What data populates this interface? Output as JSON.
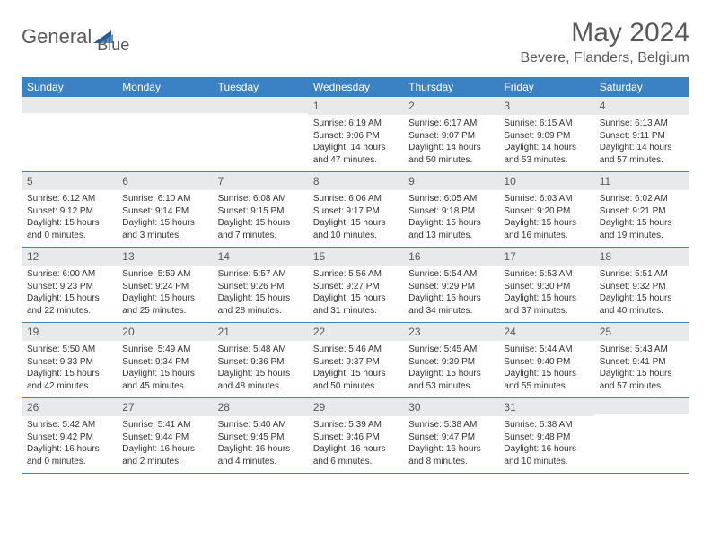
{
  "logo": {
    "text1": "General",
    "text2": "Blue"
  },
  "title": "May 2024",
  "location": "Bevere, Flanders, Belgium",
  "colors": {
    "header_bg": "#3b82c4",
    "header_text": "#ffffff",
    "daynum_bg": "#e8e9ea",
    "text": "#58595b",
    "body_text": "#333333",
    "border": "#3b82c4",
    "logo_accent": "#1e5fa0"
  },
  "fonts": {
    "title_size": 30,
    "location_size": 16,
    "header_size": 12,
    "body_size": 10
  },
  "dayNames": [
    "Sunday",
    "Monday",
    "Tuesday",
    "Wednesday",
    "Thursday",
    "Friday",
    "Saturday"
  ],
  "weeks": [
    [
      null,
      null,
      null,
      {
        "d": "1",
        "sr": "6:19 AM",
        "ss": "9:06 PM",
        "dl": "14 hours and 47 minutes."
      },
      {
        "d": "2",
        "sr": "6:17 AM",
        "ss": "9:07 PM",
        "dl": "14 hours and 50 minutes."
      },
      {
        "d": "3",
        "sr": "6:15 AM",
        "ss": "9:09 PM",
        "dl": "14 hours and 53 minutes."
      },
      {
        "d": "4",
        "sr": "6:13 AM",
        "ss": "9:11 PM",
        "dl": "14 hours and 57 minutes."
      }
    ],
    [
      {
        "d": "5",
        "sr": "6:12 AM",
        "ss": "9:12 PM",
        "dl": "15 hours and 0 minutes."
      },
      {
        "d": "6",
        "sr": "6:10 AM",
        "ss": "9:14 PM",
        "dl": "15 hours and 3 minutes."
      },
      {
        "d": "7",
        "sr": "6:08 AM",
        "ss": "9:15 PM",
        "dl": "15 hours and 7 minutes."
      },
      {
        "d": "8",
        "sr": "6:06 AM",
        "ss": "9:17 PM",
        "dl": "15 hours and 10 minutes."
      },
      {
        "d": "9",
        "sr": "6:05 AM",
        "ss": "9:18 PM",
        "dl": "15 hours and 13 minutes."
      },
      {
        "d": "10",
        "sr": "6:03 AM",
        "ss": "9:20 PM",
        "dl": "15 hours and 16 minutes."
      },
      {
        "d": "11",
        "sr": "6:02 AM",
        "ss": "9:21 PM",
        "dl": "15 hours and 19 minutes."
      }
    ],
    [
      {
        "d": "12",
        "sr": "6:00 AM",
        "ss": "9:23 PM",
        "dl": "15 hours and 22 minutes."
      },
      {
        "d": "13",
        "sr": "5:59 AM",
        "ss": "9:24 PM",
        "dl": "15 hours and 25 minutes."
      },
      {
        "d": "14",
        "sr": "5:57 AM",
        "ss": "9:26 PM",
        "dl": "15 hours and 28 minutes."
      },
      {
        "d": "15",
        "sr": "5:56 AM",
        "ss": "9:27 PM",
        "dl": "15 hours and 31 minutes."
      },
      {
        "d": "16",
        "sr": "5:54 AM",
        "ss": "9:29 PM",
        "dl": "15 hours and 34 minutes."
      },
      {
        "d": "17",
        "sr": "5:53 AM",
        "ss": "9:30 PM",
        "dl": "15 hours and 37 minutes."
      },
      {
        "d": "18",
        "sr": "5:51 AM",
        "ss": "9:32 PM",
        "dl": "15 hours and 40 minutes."
      }
    ],
    [
      {
        "d": "19",
        "sr": "5:50 AM",
        "ss": "9:33 PM",
        "dl": "15 hours and 42 minutes."
      },
      {
        "d": "20",
        "sr": "5:49 AM",
        "ss": "9:34 PM",
        "dl": "15 hours and 45 minutes."
      },
      {
        "d": "21",
        "sr": "5:48 AM",
        "ss": "9:36 PM",
        "dl": "15 hours and 48 minutes."
      },
      {
        "d": "22",
        "sr": "5:46 AM",
        "ss": "9:37 PM",
        "dl": "15 hours and 50 minutes."
      },
      {
        "d": "23",
        "sr": "5:45 AM",
        "ss": "9:39 PM",
        "dl": "15 hours and 53 minutes."
      },
      {
        "d": "24",
        "sr": "5:44 AM",
        "ss": "9:40 PM",
        "dl": "15 hours and 55 minutes."
      },
      {
        "d": "25",
        "sr": "5:43 AM",
        "ss": "9:41 PM",
        "dl": "15 hours and 57 minutes."
      }
    ],
    [
      {
        "d": "26",
        "sr": "5:42 AM",
        "ss": "9:42 PM",
        "dl": "16 hours and 0 minutes."
      },
      {
        "d": "27",
        "sr": "5:41 AM",
        "ss": "9:44 PM",
        "dl": "16 hours and 2 minutes."
      },
      {
        "d": "28",
        "sr": "5:40 AM",
        "ss": "9:45 PM",
        "dl": "16 hours and 4 minutes."
      },
      {
        "d": "29",
        "sr": "5:39 AM",
        "ss": "9:46 PM",
        "dl": "16 hours and 6 minutes."
      },
      {
        "d": "30",
        "sr": "5:38 AM",
        "ss": "9:47 PM",
        "dl": "16 hours and 8 minutes."
      },
      {
        "d": "31",
        "sr": "5:38 AM",
        "ss": "9:48 PM",
        "dl": "16 hours and 10 minutes."
      },
      null
    ]
  ],
  "labels": {
    "sunrise": "Sunrise:",
    "sunset": "Sunset:",
    "daylight": "Daylight:"
  }
}
